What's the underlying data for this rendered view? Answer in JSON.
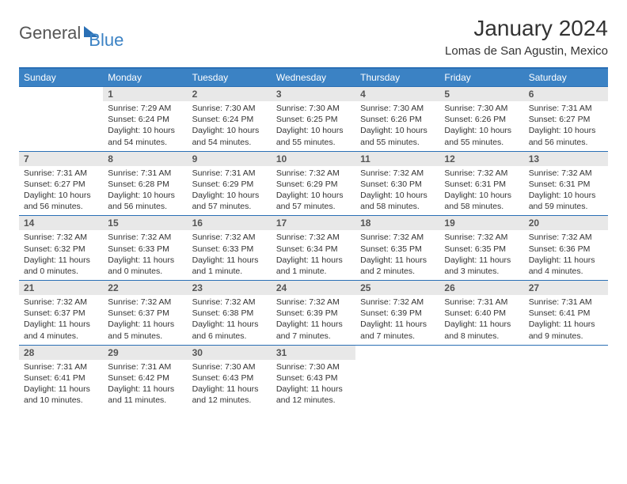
{
  "logo": {
    "text1": "General",
    "text2": "Blue"
  },
  "title": "January 2024",
  "location": "Lomas de San Agustin, Mexico",
  "colors": {
    "header_bg": "#3b82c4",
    "header_border": "#2a6fb5",
    "daynum_bg": "#e8e8e8",
    "text": "#333333"
  },
  "weekdays": [
    "Sunday",
    "Monday",
    "Tuesday",
    "Wednesday",
    "Thursday",
    "Friday",
    "Saturday"
  ],
  "weeks": [
    [
      {
        "day": "",
        "sunrise": "",
        "sunset": "",
        "daylight": "",
        "empty": true
      },
      {
        "day": "1",
        "sunrise": "Sunrise: 7:29 AM",
        "sunset": "Sunset: 6:24 PM",
        "daylight": "Daylight: 10 hours and 54 minutes."
      },
      {
        "day": "2",
        "sunrise": "Sunrise: 7:30 AM",
        "sunset": "Sunset: 6:24 PM",
        "daylight": "Daylight: 10 hours and 54 minutes."
      },
      {
        "day": "3",
        "sunrise": "Sunrise: 7:30 AM",
        "sunset": "Sunset: 6:25 PM",
        "daylight": "Daylight: 10 hours and 55 minutes."
      },
      {
        "day": "4",
        "sunrise": "Sunrise: 7:30 AM",
        "sunset": "Sunset: 6:26 PM",
        "daylight": "Daylight: 10 hours and 55 minutes."
      },
      {
        "day": "5",
        "sunrise": "Sunrise: 7:30 AM",
        "sunset": "Sunset: 6:26 PM",
        "daylight": "Daylight: 10 hours and 55 minutes."
      },
      {
        "day": "6",
        "sunrise": "Sunrise: 7:31 AM",
        "sunset": "Sunset: 6:27 PM",
        "daylight": "Daylight: 10 hours and 56 minutes."
      }
    ],
    [
      {
        "day": "7",
        "sunrise": "Sunrise: 7:31 AM",
        "sunset": "Sunset: 6:27 PM",
        "daylight": "Daylight: 10 hours and 56 minutes."
      },
      {
        "day": "8",
        "sunrise": "Sunrise: 7:31 AM",
        "sunset": "Sunset: 6:28 PM",
        "daylight": "Daylight: 10 hours and 56 minutes."
      },
      {
        "day": "9",
        "sunrise": "Sunrise: 7:31 AM",
        "sunset": "Sunset: 6:29 PM",
        "daylight": "Daylight: 10 hours and 57 minutes."
      },
      {
        "day": "10",
        "sunrise": "Sunrise: 7:32 AM",
        "sunset": "Sunset: 6:29 PM",
        "daylight": "Daylight: 10 hours and 57 minutes."
      },
      {
        "day": "11",
        "sunrise": "Sunrise: 7:32 AM",
        "sunset": "Sunset: 6:30 PM",
        "daylight": "Daylight: 10 hours and 58 minutes."
      },
      {
        "day": "12",
        "sunrise": "Sunrise: 7:32 AM",
        "sunset": "Sunset: 6:31 PM",
        "daylight": "Daylight: 10 hours and 58 minutes."
      },
      {
        "day": "13",
        "sunrise": "Sunrise: 7:32 AM",
        "sunset": "Sunset: 6:31 PM",
        "daylight": "Daylight: 10 hours and 59 minutes."
      }
    ],
    [
      {
        "day": "14",
        "sunrise": "Sunrise: 7:32 AM",
        "sunset": "Sunset: 6:32 PM",
        "daylight": "Daylight: 11 hours and 0 minutes."
      },
      {
        "day": "15",
        "sunrise": "Sunrise: 7:32 AM",
        "sunset": "Sunset: 6:33 PM",
        "daylight": "Daylight: 11 hours and 0 minutes."
      },
      {
        "day": "16",
        "sunrise": "Sunrise: 7:32 AM",
        "sunset": "Sunset: 6:33 PM",
        "daylight": "Daylight: 11 hours and 1 minute."
      },
      {
        "day": "17",
        "sunrise": "Sunrise: 7:32 AM",
        "sunset": "Sunset: 6:34 PM",
        "daylight": "Daylight: 11 hours and 1 minute."
      },
      {
        "day": "18",
        "sunrise": "Sunrise: 7:32 AM",
        "sunset": "Sunset: 6:35 PM",
        "daylight": "Daylight: 11 hours and 2 minutes."
      },
      {
        "day": "19",
        "sunrise": "Sunrise: 7:32 AM",
        "sunset": "Sunset: 6:35 PM",
        "daylight": "Daylight: 11 hours and 3 minutes."
      },
      {
        "day": "20",
        "sunrise": "Sunrise: 7:32 AM",
        "sunset": "Sunset: 6:36 PM",
        "daylight": "Daylight: 11 hours and 4 minutes."
      }
    ],
    [
      {
        "day": "21",
        "sunrise": "Sunrise: 7:32 AM",
        "sunset": "Sunset: 6:37 PM",
        "daylight": "Daylight: 11 hours and 4 minutes."
      },
      {
        "day": "22",
        "sunrise": "Sunrise: 7:32 AM",
        "sunset": "Sunset: 6:37 PM",
        "daylight": "Daylight: 11 hours and 5 minutes."
      },
      {
        "day": "23",
        "sunrise": "Sunrise: 7:32 AM",
        "sunset": "Sunset: 6:38 PM",
        "daylight": "Daylight: 11 hours and 6 minutes."
      },
      {
        "day": "24",
        "sunrise": "Sunrise: 7:32 AM",
        "sunset": "Sunset: 6:39 PM",
        "daylight": "Daylight: 11 hours and 7 minutes."
      },
      {
        "day": "25",
        "sunrise": "Sunrise: 7:32 AM",
        "sunset": "Sunset: 6:39 PM",
        "daylight": "Daylight: 11 hours and 7 minutes."
      },
      {
        "day": "26",
        "sunrise": "Sunrise: 7:31 AM",
        "sunset": "Sunset: 6:40 PM",
        "daylight": "Daylight: 11 hours and 8 minutes."
      },
      {
        "day": "27",
        "sunrise": "Sunrise: 7:31 AM",
        "sunset": "Sunset: 6:41 PM",
        "daylight": "Daylight: 11 hours and 9 minutes."
      }
    ],
    [
      {
        "day": "28",
        "sunrise": "Sunrise: 7:31 AM",
        "sunset": "Sunset: 6:41 PM",
        "daylight": "Daylight: 11 hours and 10 minutes."
      },
      {
        "day": "29",
        "sunrise": "Sunrise: 7:31 AM",
        "sunset": "Sunset: 6:42 PM",
        "daylight": "Daylight: 11 hours and 11 minutes."
      },
      {
        "day": "30",
        "sunrise": "Sunrise: 7:30 AM",
        "sunset": "Sunset: 6:43 PM",
        "daylight": "Daylight: 11 hours and 12 minutes."
      },
      {
        "day": "31",
        "sunrise": "Sunrise: 7:30 AM",
        "sunset": "Sunset: 6:43 PM",
        "daylight": "Daylight: 11 hours and 12 minutes."
      },
      {
        "day": "",
        "sunrise": "",
        "sunset": "",
        "daylight": "",
        "empty": true
      },
      {
        "day": "",
        "sunrise": "",
        "sunset": "",
        "daylight": "",
        "empty": true
      },
      {
        "day": "",
        "sunrise": "",
        "sunset": "",
        "daylight": "",
        "empty": true
      }
    ]
  ]
}
